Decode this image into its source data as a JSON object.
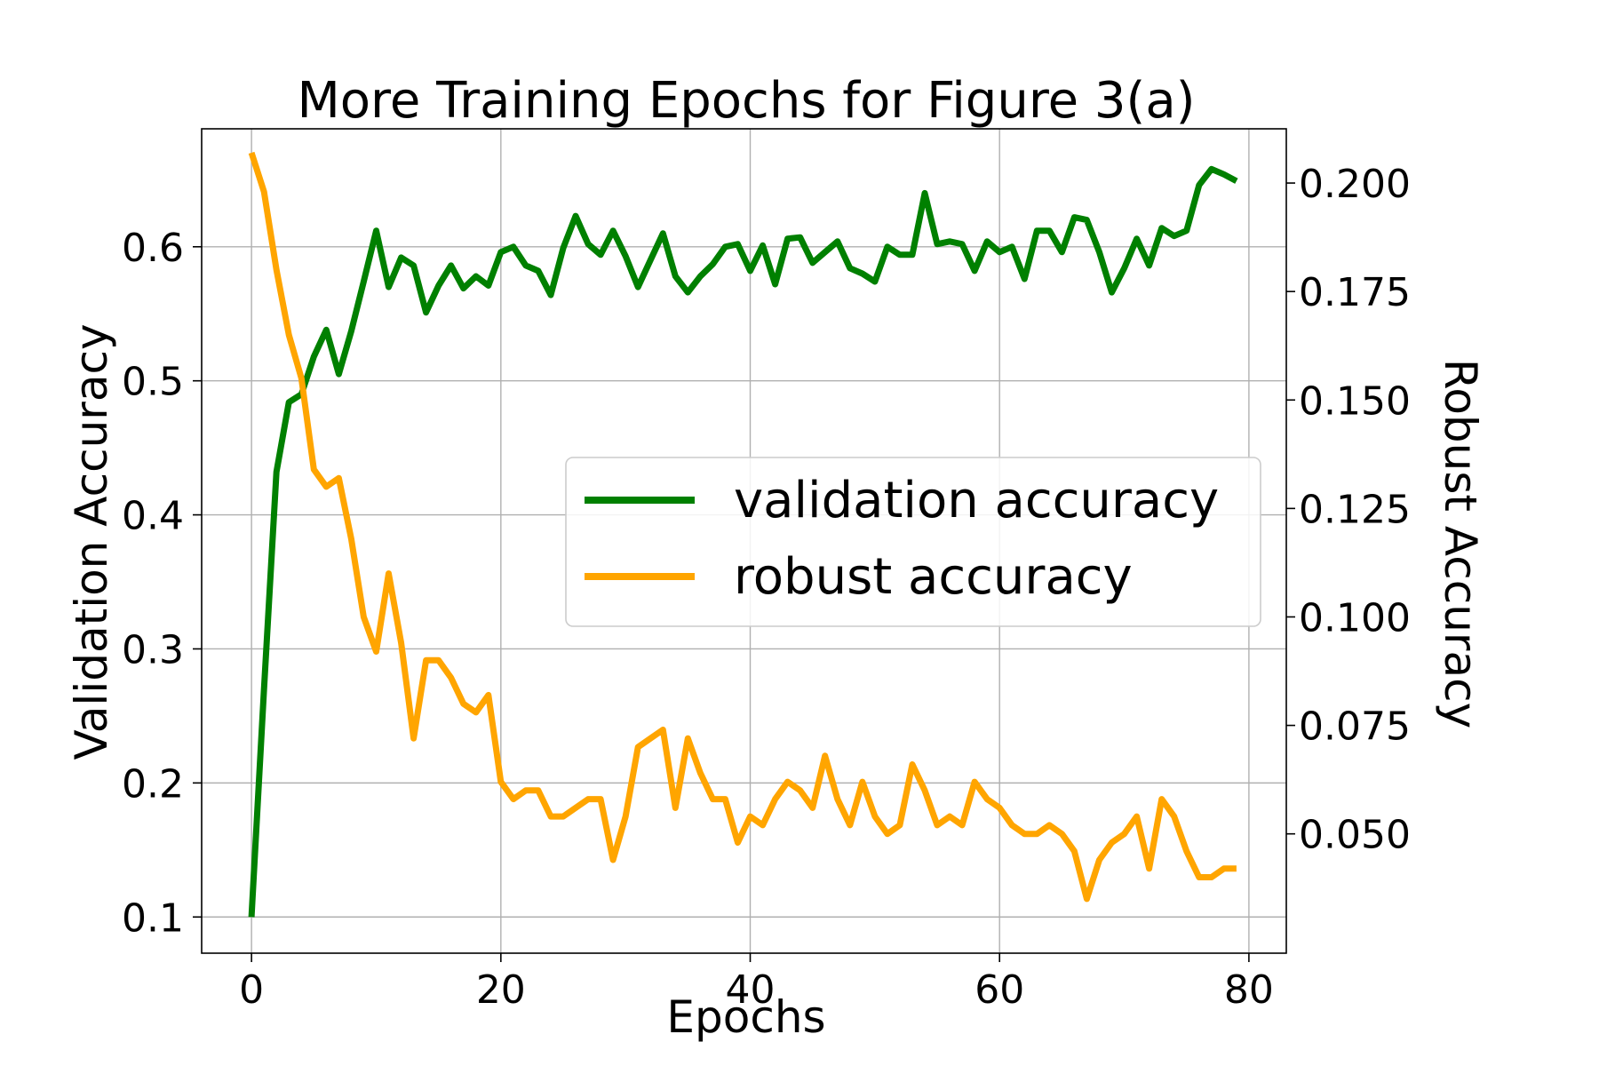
{
  "chart_data": {
    "type": "line",
    "title": "More Training Epochs for Figure 3(a)",
    "xlabel": "Epochs",
    "ylabel": "Validation Accuracy",
    "y2label": "Robust Accuracy",
    "xlim": [
      -4,
      83
    ],
    "ylim": [
      0.073,
      0.688
    ],
    "y2lim": [
      0.0225,
      0.2125
    ],
    "xticks": [
      0,
      20,
      40,
      60,
      80
    ],
    "xtick_labels": [
      "0",
      "20",
      "40",
      "60",
      "80"
    ],
    "yticks": [
      0.1,
      0.2,
      0.3,
      0.4,
      0.5,
      0.6
    ],
    "ytick_labels": [
      "0.1",
      "0.2",
      "0.3",
      "0.4",
      "0.5",
      "0.6"
    ],
    "y2ticks": [
      0.05,
      0.075,
      0.1,
      0.125,
      0.15,
      0.175,
      0.2
    ],
    "y2tick_labels": [
      "0.050",
      "0.075",
      "0.100",
      "0.125",
      "0.150",
      "0.175",
      "0.200"
    ],
    "grid": true,
    "legend_position": "center-right",
    "x": [
      0,
      1,
      2,
      3,
      4,
      5,
      6,
      7,
      8,
      9,
      10,
      11,
      12,
      13,
      14,
      15,
      16,
      17,
      18,
      19,
      20,
      21,
      22,
      23,
      24,
      25,
      26,
      27,
      28,
      29,
      30,
      31,
      32,
      33,
      34,
      35,
      36,
      37,
      38,
      39,
      40,
      41,
      42,
      43,
      44,
      45,
      46,
      47,
      48,
      49,
      50,
      51,
      52,
      53,
      54,
      55,
      56,
      57,
      58,
      59,
      60,
      61,
      62,
      63,
      64,
      65,
      66,
      67,
      68,
      69,
      70,
      71,
      72,
      73,
      74,
      75,
      76,
      77,
      78,
      79
    ],
    "series": [
      {
        "name": "validation accuracy",
        "axis": "left",
        "color": "#008000",
        "values": [
          0.1,
          0.27,
          0.432,
          0.484,
          0.49,
          0.518,
          0.538,
          0.505,
          0.537,
          0.574,
          0.612,
          0.57,
          0.592,
          0.586,
          0.551,
          0.571,
          0.586,
          0.569,
          0.578,
          0.571,
          0.596,
          0.6,
          0.586,
          0.582,
          0.564,
          0.599,
          0.623,
          0.602,
          0.594,
          0.612,
          0.593,
          0.57,
          0.59,
          0.61,
          0.578,
          0.566,
          0.578,
          0.587,
          0.6,
          0.602,
          0.582,
          0.601,
          0.572,
          0.606,
          0.607,
          0.588,
          0.596,
          0.604,
          0.584,
          0.58,
          0.574,
          0.6,
          0.594,
          0.594,
          0.64,
          0.602,
          0.604,
          0.602,
          0.582,
          0.604,
          0.596,
          0.6,
          0.576,
          0.612,
          0.612,
          0.596,
          0.622,
          0.62,
          0.596,
          0.566,
          0.584,
          0.606,
          0.586,
          0.614,
          0.608,
          0.612,
          0.646,
          0.658,
          0.654,
          0.649
        ]
      },
      {
        "name": "robust accuracy",
        "axis": "right",
        "color": "#FFA500",
        "values": [
          0.207,
          0.198,
          0.18,
          0.165,
          0.155,
          0.134,
          0.13,
          0.132,
          0.118,
          0.1,
          0.092,
          0.11,
          0.094,
          0.072,
          0.09,
          0.09,
          0.086,
          0.08,
          0.078,
          0.082,
          0.062,
          0.058,
          0.06,
          0.06,
          0.054,
          0.054,
          0.056,
          0.058,
          0.058,
          0.044,
          0.054,
          0.07,
          0.072,
          0.074,
          0.056,
          0.072,
          0.064,
          0.058,
          0.058,
          0.048,
          0.054,
          0.052,
          0.058,
          0.062,
          0.06,
          0.056,
          0.068,
          0.058,
          0.052,
          0.062,
          0.054,
          0.05,
          0.052,
          0.066,
          0.06,
          0.052,
          0.054,
          0.052,
          0.062,
          0.058,
          0.056,
          0.052,
          0.05,
          0.05,
          0.052,
          0.05,
          0.046,
          0.035,
          0.044,
          0.048,
          0.05,
          0.054,
          0.042,
          0.058,
          0.054,
          0.046,
          0.04,
          0.04,
          0.042,
          0.042
        ]
      }
    ]
  }
}
